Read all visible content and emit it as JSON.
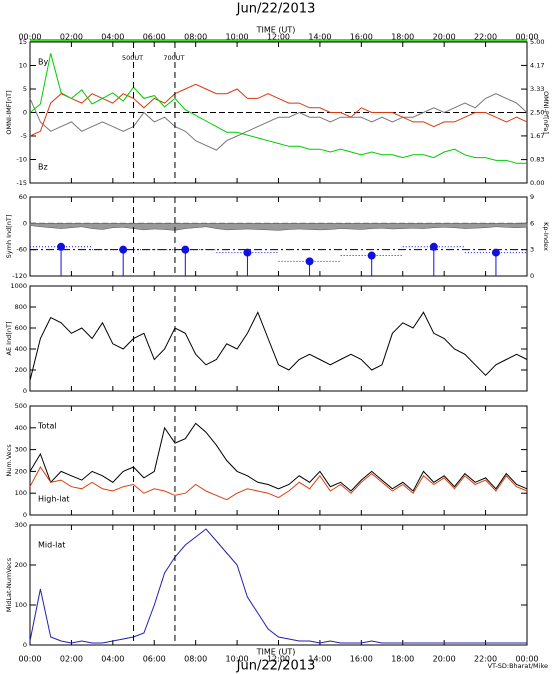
{
  "title": "Jun/22/2013",
  "credit": "VT-SD:Bharat/Mike",
  "time_axis": {
    "label": "TIME (UT)",
    "xlim": [
      0,
      24
    ],
    "xticks": [
      {
        "value": 0,
        "label": "00:00"
      },
      {
        "value": 2,
        "label": "02:00"
      },
      {
        "value": 4,
        "label": "04:00"
      },
      {
        "value": 6,
        "label": "06:00"
      },
      {
        "value": 8,
        "label": "08:00"
      },
      {
        "value": 10,
        "label": "10:00"
      },
      {
        "value": 12,
        "label": "12:00"
      },
      {
        "value": 14,
        "label": "14:00"
      },
      {
        "value": 16,
        "label": "16:00"
      },
      {
        "value": 18,
        "label": "18:00"
      },
      {
        "value": 20,
        "label": "20:00"
      },
      {
        "value": 22,
        "label": "22:00"
      },
      {
        "value": 24,
        "label": "00:00"
      }
    ]
  },
  "markers": [
    {
      "x": 5,
      "label": "500UT"
    },
    {
      "x": 7,
      "label": "700UT"
    }
  ],
  "chart_data": [
    {
      "type": "line",
      "ylabel": "OMNI-IMF[nT]",
      "ylim": [
        -15,
        15
      ],
      "yticks": [
        -15,
        -10,
        -5,
        0,
        5,
        10,
        15
      ],
      "ref_lines": [
        0
      ],
      "y2label": "OMNI-Pf[nPa]",
      "y2color": "#00cc00",
      "y2lim": [
        0,
        5
      ],
      "y2ticks": [
        {
          "value": 0,
          "label": "0.00"
        },
        0.83,
        1.67,
        {
          "value": 2.5,
          "label": "2.50"
        },
        3.33,
        4.17,
        {
          "value": 5,
          "label": "5.00"
        }
      ],
      "x": [
        0,
        0.5,
        1,
        1.5,
        2,
        2.5,
        3,
        3.5,
        4,
        4.5,
        5,
        5.5,
        6,
        6.5,
        7,
        7.5,
        8,
        8.5,
        9,
        9.5,
        10,
        10.5,
        11,
        11.5,
        12,
        12.5,
        13,
        13.5,
        14,
        14.5,
        15,
        15.5,
        16,
        16.5,
        17,
        17.5,
        18,
        18.5,
        19,
        19.5,
        20,
        20.5,
        21,
        21.5,
        22,
        22.5,
        23,
        23.5,
        24
      ],
      "series": [
        {
          "name": "By",
          "color": "#777777",
          "values": [
            3,
            -2,
            -4,
            -3,
            -2,
            -4,
            -3,
            -2,
            -3,
            -4,
            -3,
            0,
            -2,
            -1,
            -3,
            -4,
            -6,
            -7,
            -8,
            -6,
            -5,
            -4,
            -3,
            -2,
            -1,
            -1,
            0,
            -1,
            -1,
            -2,
            -1,
            -1,
            -1,
            -2,
            -1,
            -2,
            -1,
            -1,
            0,
            1,
            0,
            1,
            2,
            1,
            3,
            4,
            3,
            2,
            0
          ]
        },
        {
          "name": "Bz",
          "color": "#d83a10",
          "values": [
            -5,
            -4,
            2,
            4,
            3,
            2,
            4,
            3,
            2,
            4,
            3,
            1,
            3,
            2,
            4,
            5,
            6,
            5,
            4,
            4,
            5,
            3,
            3,
            4,
            3,
            2,
            2,
            1,
            1,
            0,
            0,
            -1,
            1,
            0,
            0,
            0,
            -1,
            -2,
            -2,
            -3,
            -2,
            -2,
            -1,
            0,
            0,
            -1,
            -2,
            -1,
            -2
          ]
        },
        {
          "color": "#00cc00",
          "axis": "y2",
          "values": [
            2.5,
            2.8,
            4.6,
            3.2,
            3.0,
            3.3,
            2.8,
            3.0,
            3.2,
            2.9,
            3.4,
            3.0,
            3.1,
            2.7,
            3.0,
            2.6,
            2.4,
            2.2,
            2.0,
            1.8,
            1.8,
            1.7,
            1.6,
            1.5,
            1.4,
            1.3,
            1.3,
            1.2,
            1.2,
            1.1,
            1.2,
            1.1,
            1.0,
            1.1,
            1.0,
            1.0,
            0.9,
            1.0,
            1.0,
            0.9,
            1.1,
            1.2,
            1.0,
            0.9,
            0.9,
            0.8,
            0.8,
            0.7,
            0.7
          ]
        }
      ]
    },
    {
      "type": "line",
      "ylabel": "Symh Ind[nT]",
      "ylim": [
        -120,
        60
      ],
      "yticks": [
        -120,
        -60,
        0,
        60
      ],
      "ref_lines": [
        0,
        -60
      ],
      "y2label": "Kp-Index",
      "y2color": "#1010c0",
      "y2lim": [
        0,
        9
      ],
      "y2ticks": [
        0,
        3,
        6,
        9
      ],
      "x": [
        0,
        0.5,
        1,
        1.5,
        2,
        2.5,
        3,
        3.5,
        4,
        4.5,
        5,
        5.5,
        6,
        6.5,
        7,
        7.5,
        8,
        8.5,
        9,
        9.5,
        10,
        10.5,
        11,
        11.5,
        12,
        12.5,
        13,
        13.5,
        14,
        14.5,
        15,
        15.5,
        16,
        16.5,
        17,
        17.5,
        18,
        18.5,
        19,
        19.5,
        20,
        20.5,
        21,
        21.5,
        22,
        22.5,
        23,
        23.5,
        24
      ],
      "series": [
        {
          "color": "#999999",
          "fill": true,
          "values": [
            -5,
            -8,
            -10,
            -12,
            -10,
            -8,
            -12,
            -14,
            -10,
            -9,
            -12,
            -15,
            -13,
            -14,
            -16,
            -12,
            -10,
            -8,
            -12,
            -15,
            -14,
            -13,
            -14,
            -15,
            -16,
            -14,
            -13,
            -14,
            -15,
            -14,
            -12,
            -13,
            -14,
            -12,
            -11,
            -13,
            -12,
            -11,
            -12,
            -10,
            -9,
            -10,
            -12,
            -11,
            -10,
            -8,
            -9,
            -10,
            -9
          ]
        },
        {
          "color": "#1010e0",
          "axis": "y2",
          "style": "stem",
          "x": [
            1.5,
            4.5,
            7.5,
            10.5,
            13.5,
            16.5,
            19.5,
            22.5
          ],
          "values": [
            3.33,
            3,
            3,
            2.67,
            1.67,
            2.33,
            3.33,
            2.67
          ]
        }
      ]
    },
    {
      "type": "line",
      "ylabel": "AE Ind[nT]",
      "ylim": [
        0,
        1000
      ],
      "yticks": [
        0,
        200,
        400,
        600,
        800,
        1000
      ],
      "x": [
        0,
        0.5,
        1,
        1.5,
        2,
        2.5,
        3,
        3.5,
        4,
        4.5,
        5,
        5.5,
        6,
        6.5,
        7,
        7.5,
        8,
        8.5,
        9,
        9.5,
        10,
        10.5,
        11,
        11.5,
        12,
        12.5,
        13,
        13.5,
        14,
        14.5,
        15,
        15.5,
        16,
        16.5,
        17,
        17.5,
        18,
        18.5,
        19,
        19.5,
        20,
        20.5,
        21,
        21.5,
        22,
        22.5,
        23,
        23.5,
        24
      ],
      "series": [
        {
          "color": "#000000",
          "values": [
            100,
            500,
            700,
            650,
            550,
            600,
            500,
            650,
            450,
            400,
            500,
            550,
            300,
            400,
            600,
            550,
            350,
            250,
            300,
            450,
            400,
            550,
            750,
            500,
            250,
            200,
            300,
            350,
            300,
            250,
            300,
            350,
            300,
            200,
            250,
            550,
            650,
            600,
            750,
            550,
            500,
            400,
            350,
            250,
            150,
            250,
            300,
            350,
            300
          ]
        }
      ]
    },
    {
      "type": "line",
      "ylabel": "Num.Vecs",
      "ylim": [
        0,
        500
      ],
      "yticks": [
        0,
        100,
        200,
        300,
        400,
        500
      ],
      "x": [
        0,
        0.5,
        1,
        1.5,
        2,
        2.5,
        3,
        3.5,
        4,
        4.5,
        5,
        5.5,
        6,
        6.5,
        7,
        7.5,
        8,
        8.5,
        9,
        9.5,
        10,
        10.5,
        11,
        11.5,
        12,
        12.5,
        13,
        13.5,
        14,
        14.5,
        15,
        15.5,
        16,
        16.5,
        17,
        17.5,
        18,
        18.5,
        19,
        19.5,
        20,
        20.5,
        21,
        21.5,
        22,
        22.5,
        23,
        23.5,
        24
      ],
      "series": [
        {
          "name": "Total",
          "color": "#000000",
          "values": [
            200,
            280,
            150,
            200,
            180,
            160,
            200,
            180,
            150,
            200,
            220,
            170,
            200,
            400,
            330,
            350,
            420,
            380,
            320,
            250,
            200,
            180,
            150,
            140,
            120,
            140,
            180,
            150,
            200,
            130,
            150,
            110,
            160,
            200,
            160,
            120,
            150,
            110,
            200,
            150,
            180,
            130,
            190,
            150,
            170,
            120,
            190,
            140,
            120
          ]
        },
        {
          "name": "High-lat",
          "color": "#d84010",
          "values": [
            130,
            220,
            150,
            160,
            130,
            120,
            150,
            120,
            110,
            130,
            140,
            100,
            120,
            110,
            90,
            100,
            140,
            110,
            90,
            70,
            100,
            120,
            110,
            100,
            80,
            110,
            150,
            120,
            180,
            110,
            140,
            100,
            150,
            190,
            150,
            110,
            140,
            100,
            180,
            140,
            170,
            120,
            180,
            140,
            160,
            110,
            180,
            130,
            110
          ]
        }
      ]
    },
    {
      "type": "line",
      "ylabel": "MidLat-NumVecs",
      "ylim": [
        0,
        300
      ],
      "yticks": [
        0,
        100,
        200,
        300
      ],
      "x": [
        0,
        0.5,
        1,
        1.5,
        2,
        2.5,
        3,
        3.5,
        4,
        4.5,
        5,
        5.5,
        6,
        6.5,
        7,
        7.5,
        8,
        8.5,
        9,
        9.5,
        10,
        10.5,
        11,
        11.5,
        12,
        12.5,
        13,
        13.5,
        14,
        14.5,
        15,
        15.5,
        16,
        16.5,
        17,
        17.5,
        18,
        18.5,
        19,
        19.5,
        20,
        20.5,
        21,
        21.5,
        22,
        22.5,
        23,
        23.5,
        24
      ],
      "series": [
        {
          "name": "Mid-lat",
          "color": "#2020b0",
          "values": [
            10,
            140,
            20,
            10,
            5,
            10,
            5,
            5,
            10,
            15,
            20,
            30,
            100,
            180,
            220,
            250,
            270,
            290,
            260,
            230,
            200,
            120,
            80,
            40,
            20,
            15,
            10,
            10,
            5,
            10,
            5,
            5,
            5,
            10,
            5,
            5,
            5,
            5,
            5,
            5,
            5,
            5,
            5,
            5,
            5,
            5,
            5,
            5,
            5
          ]
        }
      ]
    }
  ]
}
